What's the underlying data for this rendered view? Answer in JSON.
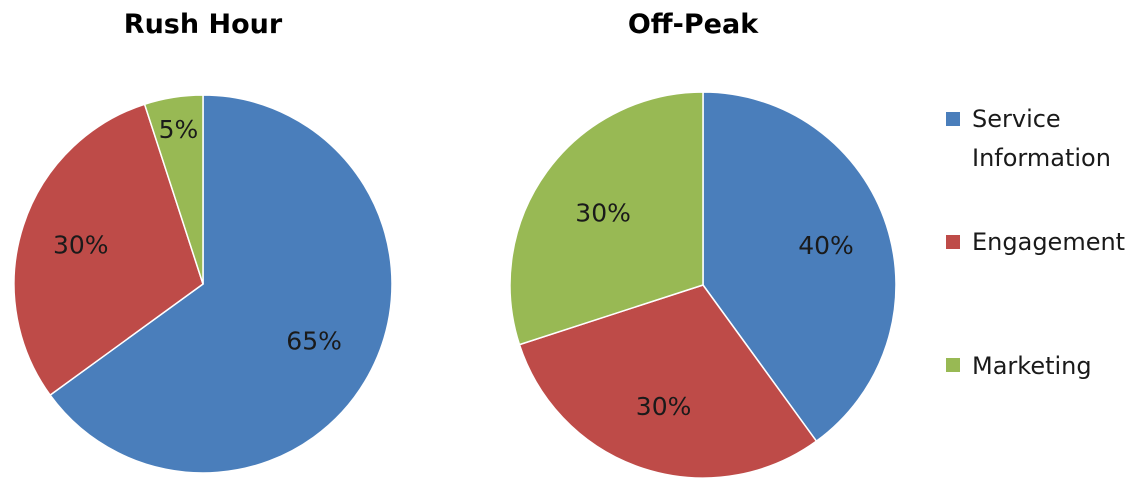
{
  "chart_data": [
    {
      "type": "pie",
      "title": "Rush Hour",
      "categories": [
        "Service Information",
        "Engagement",
        "Marketing"
      ],
      "values": [
        65,
        30,
        5
      ],
      "labels": [
        "65%",
        "30%",
        "5%"
      ],
      "start_angle_deg": 0,
      "direction": "clockwise"
    },
    {
      "type": "pie",
      "title": "Off-Peak",
      "categories": [
        "Service Information",
        "Engagement",
        "Marketing"
      ],
      "values": [
        40,
        30,
        30
      ],
      "labels": [
        "40%",
        "30%",
        "30%"
      ],
      "start_angle_deg": 0,
      "direction": "clockwise"
    }
  ],
  "legend": {
    "placement": "right",
    "items": [
      {
        "lines": [
          "Service",
          "Information"
        ],
        "color": "#4a7ebb"
      },
      {
        "lines": [
          "Engagement"
        ],
        "color": "#be4b48"
      },
      {
        "lines": [
          "Marketing"
        ],
        "color": "#98b954"
      }
    ]
  },
  "colors": {
    "Service Information": "#4a7ebb",
    "Engagement": "#be4b48",
    "Marketing": "#98b954"
  }
}
